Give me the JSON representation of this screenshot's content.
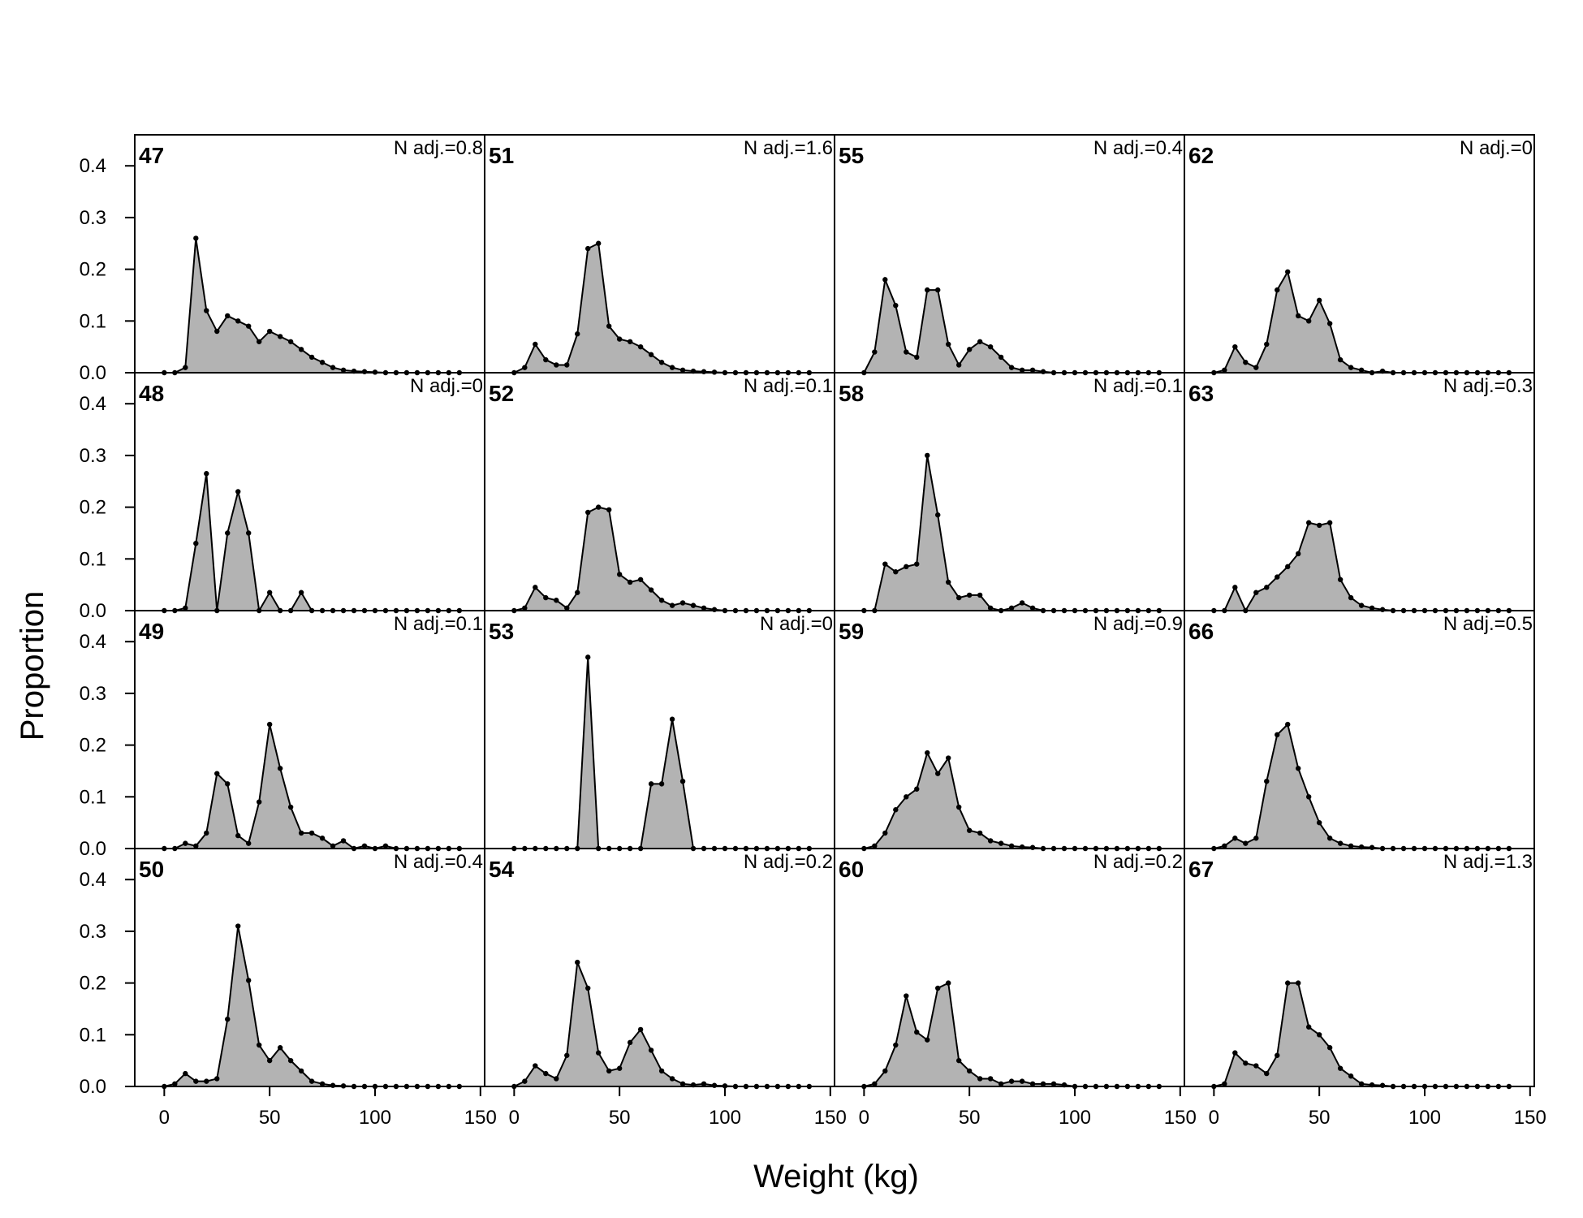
{
  "chart_data": {
    "type": "area",
    "xlabel": "Weight (kg)",
    "ylabel": "Proportion",
    "xlim": [
      -14,
      152
    ],
    "ylim": [
      0,
      0.46
    ],
    "x_ticks": [
      "0",
      "50",
      "100",
      "150"
    ],
    "y_ticks": [
      "0.0",
      "0.1",
      "0.2",
      "0.3",
      "0.4"
    ],
    "grid": false,
    "colors": {
      "fill": "#b3b3b3",
      "line": "#000000"
    },
    "x": [
      0,
      5,
      10,
      15,
      20,
      25,
      30,
      35,
      40,
      45,
      50,
      55,
      60,
      65,
      70,
      75,
      80,
      85,
      90,
      95,
      100,
      105,
      110,
      115,
      120,
      125,
      130,
      135,
      140
    ],
    "panels": [
      {
        "id": "47",
        "nadj": "N adj.=0.8",
        "values": [
          0,
          0,
          0.01,
          0.26,
          0.12,
          0.08,
          0.11,
          0.1,
          0.09,
          0.06,
          0.08,
          0.07,
          0.06,
          0.045,
          0.03,
          0.02,
          0.01,
          0.005,
          0.003,
          0.002,
          0.001,
          0,
          0,
          0,
          0,
          0,
          0,
          0,
          0
        ]
      },
      {
        "id": "48",
        "nadj": "N adj.=0",
        "values": [
          0,
          0,
          0.005,
          0.13,
          0.265,
          0,
          0.15,
          0.23,
          0.15,
          0,
          0.035,
          0,
          0,
          0.035,
          0,
          0,
          0,
          0,
          0,
          0,
          0,
          0,
          0,
          0,
          0,
          0,
          0,
          0,
          0
        ]
      },
      {
        "id": "49",
        "nadj": "N adj.=0.1",
        "values": [
          0,
          0,
          0.01,
          0.005,
          0.03,
          0.145,
          0.125,
          0.025,
          0.01,
          0.09,
          0.24,
          0.155,
          0.08,
          0.03,
          0.03,
          0.02,
          0.005,
          0.015,
          0,
          0.005,
          0,
          0.005,
          0,
          0,
          0,
          0,
          0,
          0,
          0
        ]
      },
      {
        "id": "50",
        "nadj": "N adj.=0.4",
        "values": [
          0,
          0.005,
          0.025,
          0.01,
          0.01,
          0.015,
          0.13,
          0.31,
          0.205,
          0.08,
          0.05,
          0.075,
          0.05,
          0.03,
          0.01,
          0.005,
          0.002,
          0.001,
          0,
          0,
          0,
          0,
          0,
          0,
          0,
          0,
          0,
          0,
          0
        ]
      },
      {
        "id": "51",
        "nadj": "N adj.=1.6",
        "values": [
          0,
          0.01,
          0.055,
          0.025,
          0.015,
          0.015,
          0.075,
          0.24,
          0.25,
          0.09,
          0.065,
          0.06,
          0.05,
          0.035,
          0.02,
          0.01,
          0.005,
          0.003,
          0.002,
          0.001,
          0,
          0,
          0,
          0,
          0,
          0,
          0,
          0,
          0
        ]
      },
      {
        "id": "52",
        "nadj": "N adj.=0.1",
        "values": [
          0,
          0.005,
          0.045,
          0.025,
          0.02,
          0.005,
          0.035,
          0.19,
          0.2,
          0.195,
          0.07,
          0.055,
          0.06,
          0.04,
          0.02,
          0.01,
          0.015,
          0.01,
          0.005,
          0.002,
          0,
          0,
          0,
          0,
          0,
          0,
          0,
          0,
          0
        ]
      },
      {
        "id": "53",
        "nadj": "N adj.=0",
        "values": [
          0,
          0,
          0,
          0,
          0,
          0,
          0,
          0.37,
          0,
          0,
          0,
          0,
          0,
          0.125,
          0.125,
          0.25,
          0.13,
          0,
          0,
          0,
          0,
          0,
          0,
          0,
          0,
          0,
          0,
          0,
          0
        ]
      },
      {
        "id": "54",
        "nadj": "N adj.=0.2",
        "values": [
          0,
          0.01,
          0.04,
          0.025,
          0.015,
          0.06,
          0.24,
          0.19,
          0.065,
          0.03,
          0.035,
          0.085,
          0.11,
          0.07,
          0.03,
          0.015,
          0.005,
          0.003,
          0.005,
          0.002,
          0.001,
          0,
          0,
          0,
          0,
          0,
          0,
          0,
          0
        ]
      },
      {
        "id": "55",
        "nadj": "N adj.=0.4",
        "values": [
          0,
          0.04,
          0.18,
          0.13,
          0.04,
          0.03,
          0.16,
          0.16,
          0.055,
          0.015,
          0.045,
          0.06,
          0.05,
          0.03,
          0.01,
          0.005,
          0.005,
          0.002,
          0,
          0,
          0,
          0,
          0,
          0,
          0,
          0,
          0,
          0,
          0
        ]
      },
      {
        "id": "58",
        "nadj": "N adj.=0.1",
        "values": [
          0,
          0,
          0.09,
          0.075,
          0.085,
          0.09,
          0.3,
          0.185,
          0.055,
          0.025,
          0.03,
          0.03,
          0.005,
          0,
          0.005,
          0.015,
          0.005,
          0,
          0,
          0,
          0,
          0,
          0,
          0,
          0,
          0,
          0,
          0,
          0
        ]
      },
      {
        "id": "59",
        "nadj": "N adj.=0.9",
        "values": [
          0,
          0.005,
          0.03,
          0.075,
          0.1,
          0.115,
          0.185,
          0.145,
          0.175,
          0.08,
          0.035,
          0.03,
          0.015,
          0.01,
          0.005,
          0.003,
          0.002,
          0,
          0,
          0,
          0,
          0,
          0,
          0,
          0,
          0,
          0,
          0,
          0
        ]
      },
      {
        "id": "60",
        "nadj": "N adj.=0.2",
        "values": [
          0,
          0.005,
          0.03,
          0.08,
          0.175,
          0.105,
          0.09,
          0.19,
          0.2,
          0.05,
          0.03,
          0.015,
          0.015,
          0.005,
          0.01,
          0.01,
          0.005,
          0.005,
          0.005,
          0.003,
          0,
          0,
          0,
          0,
          0,
          0,
          0,
          0,
          0
        ]
      },
      {
        "id": "62",
        "nadj": "N adj.=0",
        "values": [
          0,
          0.005,
          0.05,
          0.02,
          0.01,
          0.055,
          0.16,
          0.195,
          0.11,
          0.1,
          0.14,
          0.095,
          0.025,
          0.01,
          0.005,
          0,
          0.003,
          0,
          0,
          0,
          0,
          0,
          0,
          0,
          0,
          0,
          0,
          0,
          0
        ]
      },
      {
        "id": "63",
        "nadj": "N adj.=0.3",
        "values": [
          0,
          0,
          0.045,
          0,
          0.035,
          0.045,
          0.065,
          0.085,
          0.11,
          0.17,
          0.165,
          0.17,
          0.06,
          0.025,
          0.01,
          0.005,
          0.002,
          0,
          0,
          0,
          0,
          0,
          0,
          0,
          0,
          0,
          0,
          0,
          0
        ]
      },
      {
        "id": "66",
        "nadj": "N adj.=0.5",
        "values": [
          0,
          0.005,
          0.02,
          0.01,
          0.02,
          0.13,
          0.22,
          0.24,
          0.155,
          0.1,
          0.05,
          0.02,
          0.01,
          0.005,
          0.003,
          0.002,
          0,
          0,
          0,
          0,
          0,
          0,
          0,
          0,
          0,
          0,
          0,
          0,
          0
        ]
      },
      {
        "id": "67",
        "nadj": "N adj.=1.3",
        "values": [
          0,
          0.005,
          0.065,
          0.045,
          0.04,
          0.025,
          0.06,
          0.2,
          0.2,
          0.115,
          0.1,
          0.075,
          0.035,
          0.02,
          0.005,
          0.003,
          0.002,
          0,
          0,
          0,
          0,
          0,
          0,
          0,
          0,
          0,
          0,
          0,
          0
        ]
      }
    ]
  }
}
